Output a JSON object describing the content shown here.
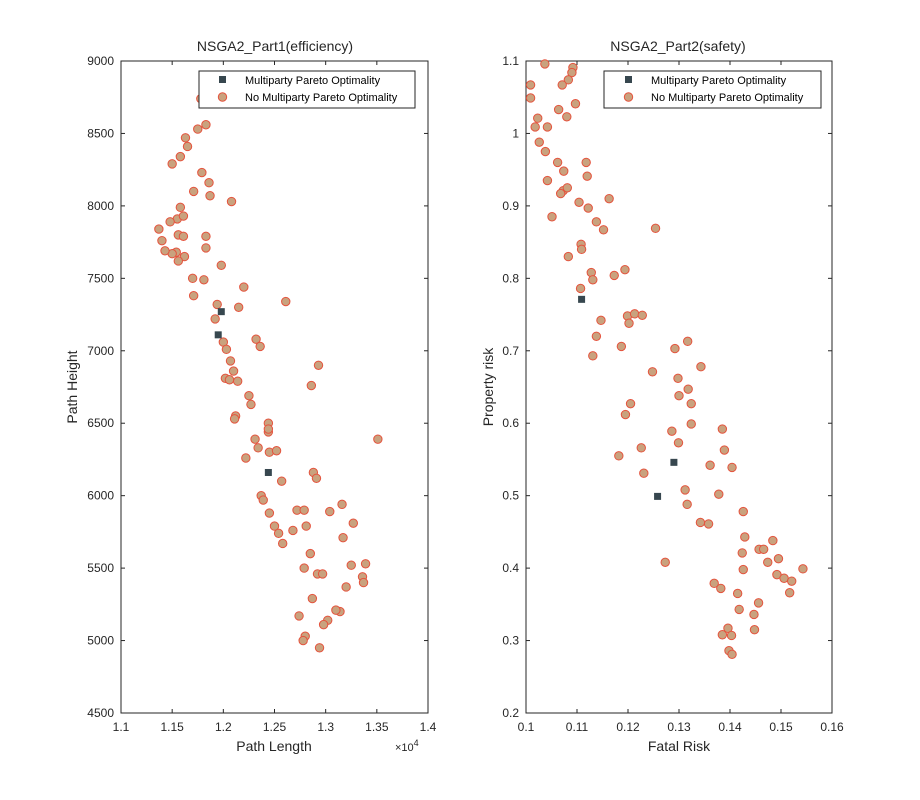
{
  "chart_data": [
    {
      "type": "scatter",
      "title": "NSGA2_Part1(efficiency)",
      "xlabel": "Path Length",
      "ylabel": "Path Height",
      "x_exponent_label": "×10",
      "x_exponent_power": "4",
      "xlim": [
        1.1,
        1.4
      ],
      "ylim": [
        4500,
        9000
      ],
      "xticks": [
        1.1,
        1.15,
        1.2,
        1.25,
        1.3,
        1.35,
        1.4
      ],
      "xtick_labels": [
        "1.1",
        "1.15",
        "1.2",
        "1.25",
        "1.3",
        "1.35",
        "1.4"
      ],
      "yticks": [
        4500,
        5000,
        5500,
        6000,
        6500,
        7000,
        7500,
        8000,
        8500,
        9000
      ],
      "ytick_labels": [
        "4500",
        "5000",
        "5500",
        "6000",
        "6500",
        "7000",
        "7500",
        "8000",
        "8500",
        "9000"
      ],
      "grid": false,
      "legend_position": "top-right",
      "series": [
        {
          "name": "Multiparty Pareto Optimality",
          "marker": "square",
          "color": "#37474f",
          "points": [
            [
              1.198,
              7270
            ],
            [
              1.195,
              7110
            ],
            [
              1.244,
              6160
            ]
          ]
        },
        {
          "name": "No Multiparty Pareto Optimality",
          "marker": "circle",
          "color": "#c9a27e",
          "edge": "#e5533d",
          "points": [
            [
              1.178,
              8740
            ],
            [
              1.183,
              8560
            ],
            [
              1.175,
              8530
            ],
            [
              1.163,
              8470
            ],
            [
              1.165,
              8410
            ],
            [
              1.158,
              8340
            ],
            [
              1.15,
              8290
            ],
            [
              1.179,
              8230
            ],
            [
              1.171,
              8100
            ],
            [
              1.186,
              8160
            ],
            [
              1.187,
              8070
            ],
            [
              1.208,
              8030
            ],
            [
              1.158,
              7990
            ],
            [
              1.155,
              7910
            ],
            [
              1.161,
              7930
            ],
            [
              1.148,
              7890
            ],
            [
              1.137,
              7840
            ],
            [
              1.156,
              7800
            ],
            [
              1.161,
              7790
            ],
            [
              1.183,
              7790
            ],
            [
              1.14,
              7760
            ],
            [
              1.154,
              7680
            ],
            [
              1.15,
              7670
            ],
            [
              1.143,
              7690
            ],
            [
              1.162,
              7650
            ],
            [
              1.156,
              7620
            ],
            [
              1.183,
              7710
            ],
            [
              1.198,
              7590
            ],
            [
              1.17,
              7500
            ],
            [
              1.181,
              7490
            ],
            [
              1.22,
              7440
            ],
            [
              1.171,
              7380
            ],
            [
              1.194,
              7320
            ],
            [
              1.215,
              7300
            ],
            [
              1.261,
              7340
            ],
            [
              1.232,
              7080
            ],
            [
              1.236,
              7030
            ],
            [
              1.2,
              7060
            ],
            [
              1.203,
              7010
            ],
            [
              1.192,
              7220
            ],
            [
              1.207,
              6930
            ],
            [
              1.21,
              6860
            ],
            [
              1.214,
              6790
            ],
            [
              1.202,
              6810
            ],
            [
              1.206,
              6800
            ],
            [
              1.225,
              6690
            ],
            [
              1.227,
              6630
            ],
            [
              1.212,
              6550
            ],
            [
              1.211,
              6530
            ],
            [
              1.244,
              6500
            ],
            [
              1.244,
              6440
            ],
            [
              1.244,
              6460
            ],
            [
              1.293,
              6900
            ],
            [
              1.286,
              6760
            ],
            [
              1.351,
              6390
            ],
            [
              1.231,
              6390
            ],
            [
              1.234,
              6330
            ],
            [
              1.245,
              6300
            ],
            [
              1.252,
              6310
            ],
            [
              1.222,
              6260
            ],
            [
              1.257,
              6100
            ],
            [
              1.288,
              6160
            ],
            [
              1.291,
              6120
            ],
            [
              1.237,
              6000
            ],
            [
              1.239,
              5970
            ],
            [
              1.245,
              5880
            ],
            [
              1.272,
              5900
            ],
            [
              1.279,
              5900
            ],
            [
              1.304,
              5890
            ],
            [
              1.316,
              5940
            ],
            [
              1.25,
              5790
            ],
            [
              1.254,
              5740
            ],
            [
              1.258,
              5670
            ],
            [
              1.268,
              5760
            ],
            [
              1.281,
              5790
            ],
            [
              1.327,
              5810
            ],
            [
              1.317,
              5710
            ],
            [
              1.285,
              5600
            ],
            [
              1.279,
              5500
            ],
            [
              1.292,
              5460
            ],
            [
              1.297,
              5460
            ],
            [
              1.325,
              5520
            ],
            [
              1.339,
              5530
            ],
            [
              1.32,
              5370
            ],
            [
              1.336,
              5440
            ],
            [
              1.337,
              5400
            ],
            [
              1.287,
              5290
            ],
            [
              1.314,
              5200
            ],
            [
              1.31,
              5210
            ],
            [
              1.302,
              5140
            ],
            [
              1.298,
              5110
            ],
            [
              1.274,
              5170
            ],
            [
              1.28,
              5030
            ],
            [
              1.278,
              5000
            ],
            [
              1.294,
              4950
            ]
          ]
        }
      ]
    },
    {
      "type": "scatter",
      "title": "NSGA2_Part2(safety)",
      "xlabel": "Fatal Risk",
      "ylabel": "Property risk",
      "xlim": [
        0.1,
        0.16
      ],
      "ylim": [
        0.2,
        1.1
      ],
      "xticks": [
        0.1,
        0.11,
        0.12,
        0.13,
        0.14,
        0.15,
        0.16
      ],
      "xtick_labels": [
        "0.1",
        "0.11",
        "0.12",
        "0.13",
        "0.14",
        "0.15",
        "0.16"
      ],
      "yticks": [
        0.2,
        0.3,
        0.4,
        0.5,
        0.6,
        0.7,
        0.8,
        0.9,
        1.0,
        1.1
      ],
      "ytick_labels": [
        "0.2",
        "0.3",
        "0.4",
        "0.5",
        "0.6",
        "0.7",
        "0.8",
        "0.9",
        "1",
        "1.1"
      ],
      "grid": false,
      "legend_position": "top-right",
      "series": [
        {
          "name": "Multiparty Pareto Optimality",
          "marker": "square",
          "color": "#37474f",
          "points": [
            [
              0.1109,
              0.771
            ],
            [
              0.129,
              0.546
            ],
            [
              0.1258,
              0.499
            ]
          ]
        },
        {
          "name": "No Multiparty Pareto Optimality",
          "marker": "circle",
          "color": "#c9a27e",
          "edge": "#e5533d",
          "points": [
            [
              0.1037,
              1.096
            ],
            [
              0.1092,
              1.091
            ],
            [
              0.109,
              1.084
            ],
            [
              0.1009,
              1.067
            ],
            [
              0.1009,
              1.049
            ],
            [
              0.1083,
              1.074
            ],
            [
              0.1071,
              1.067
            ],
            [
              0.1064,
              1.033
            ],
            [
              0.1023,
              1.021
            ],
            [
              0.1018,
              1.009
            ],
            [
              0.1042,
              1.009
            ],
            [
              0.108,
              1.023
            ],
            [
              0.1097,
              1.041
            ],
            [
              0.1026,
              0.988
            ],
            [
              0.1038,
              0.975
            ],
            [
              0.1062,
              0.96
            ],
            [
              0.1074,
              0.948
            ],
            [
              0.1118,
              0.96
            ],
            [
              0.1042,
              0.935
            ],
            [
              0.1073,
              0.921
            ],
            [
              0.1081,
              0.925
            ],
            [
              0.1104,
              0.905
            ],
            [
              0.1068,
              0.917
            ],
            [
              0.112,
              0.941
            ],
            [
              0.1122,
              0.897
            ],
            [
              0.1163,
              0.91
            ],
            [
              0.1051,
              0.885
            ],
            [
              0.1138,
              0.878
            ],
            [
              0.1152,
              0.867
            ],
            [
              0.1254,
              0.869
            ],
            [
              0.1108,
              0.847
            ],
            [
              0.1109,
              0.84
            ],
            [
              0.1083,
              0.83
            ],
            [
              0.1128,
              0.808
            ],
            [
              0.1131,
              0.798
            ],
            [
              0.1107,
              0.786
            ],
            [
              0.1173,
              0.804
            ],
            [
              0.1194,
              0.812
            ],
            [
              0.1147,
              0.742
            ],
            [
              0.1199,
              0.748
            ],
            [
              0.1213,
              0.751
            ],
            [
              0.1202,
              0.738
            ],
            [
              0.1228,
              0.749
            ],
            [
              0.1138,
              0.72
            ],
            [
              0.1131,
              0.693
            ],
            [
              0.1187,
              0.706
            ],
            [
              0.1292,
              0.703
            ],
            [
              0.1317,
              0.713
            ],
            [
              0.1343,
              0.678
            ],
            [
              0.1248,
              0.671
            ],
            [
              0.1298,
              0.662
            ],
            [
              0.1318,
              0.647
            ],
            [
              0.13,
              0.638
            ],
            [
              0.1324,
              0.627
            ],
            [
              0.1205,
              0.627
            ],
            [
              0.1195,
              0.612
            ],
            [
              0.1324,
              0.599
            ],
            [
              0.1286,
              0.589
            ],
            [
              0.1299,
              0.573
            ],
            [
              0.1385,
              0.592
            ],
            [
              0.1389,
              0.563
            ],
            [
              0.1226,
              0.566
            ],
            [
              0.1182,
              0.555
            ],
            [
              0.1361,
              0.542
            ],
            [
              0.1404,
              0.539
            ],
            [
              0.1231,
              0.531
            ],
            [
              0.1312,
              0.508
            ],
            [
              0.1378,
              0.502
            ],
            [
              0.1316,
              0.488
            ],
            [
              0.1342,
              0.463
            ],
            [
              0.1358,
              0.461
            ],
            [
              0.1426,
              0.478
            ],
            [
              0.1429,
              0.443
            ],
            [
              0.1457,
              0.426
            ],
            [
              0.1466,
              0.426
            ],
            [
              0.1484,
              0.438
            ],
            [
              0.1424,
              0.421
            ],
            [
              0.1474,
              0.408
            ],
            [
              0.1495,
              0.413
            ],
            [
              0.1426,
              0.398
            ],
            [
              0.1492,
              0.391
            ],
            [
              0.1506,
              0.386
            ],
            [
              0.1521,
              0.382
            ],
            [
              0.1543,
              0.399
            ],
            [
              0.1517,
              0.366
            ],
            [
              0.1273,
              0.408
            ],
            [
              0.1369,
              0.379
            ],
            [
              0.1382,
              0.372
            ],
            [
              0.1415,
              0.365
            ],
            [
              0.1456,
              0.352
            ],
            [
              0.1418,
              0.343
            ],
            [
              0.1447,
              0.336
            ],
            [
              0.1448,
              0.315
            ],
            [
              0.1396,
              0.317
            ],
            [
              0.1385,
              0.308
            ],
            [
              0.1403,
              0.307
            ],
            [
              0.1398,
              0.286
            ],
            [
              0.1404,
              0.281
            ]
          ]
        }
      ]
    }
  ]
}
